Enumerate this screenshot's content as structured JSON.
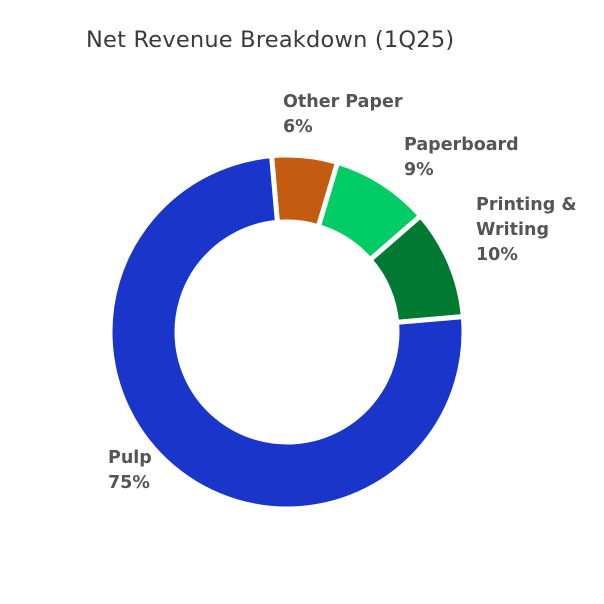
{
  "chart_data": {
    "type": "pie",
    "title": "Net Revenue Breakdown (1Q25)",
    "slices": [
      {
        "name": "Other Paper",
        "value": 6,
        "value_label": "6%",
        "color": "#C55A11"
      },
      {
        "name": "Paperboard",
        "value": 9,
        "value_label": "9%",
        "color": "#00CC66"
      },
      {
        "name": "Printing & Writing",
        "name_lines": [
          "Printing &",
          "Writing"
        ],
        "value": 10,
        "value_label": "10%",
        "color": "#007A33"
      },
      {
        "name": "Pulp",
        "value": 75,
        "value_label": "75%",
        "color": "#1A35C9"
      }
    ],
    "donut": true,
    "start_angle_deg": -5,
    "direction": "clockwise"
  }
}
